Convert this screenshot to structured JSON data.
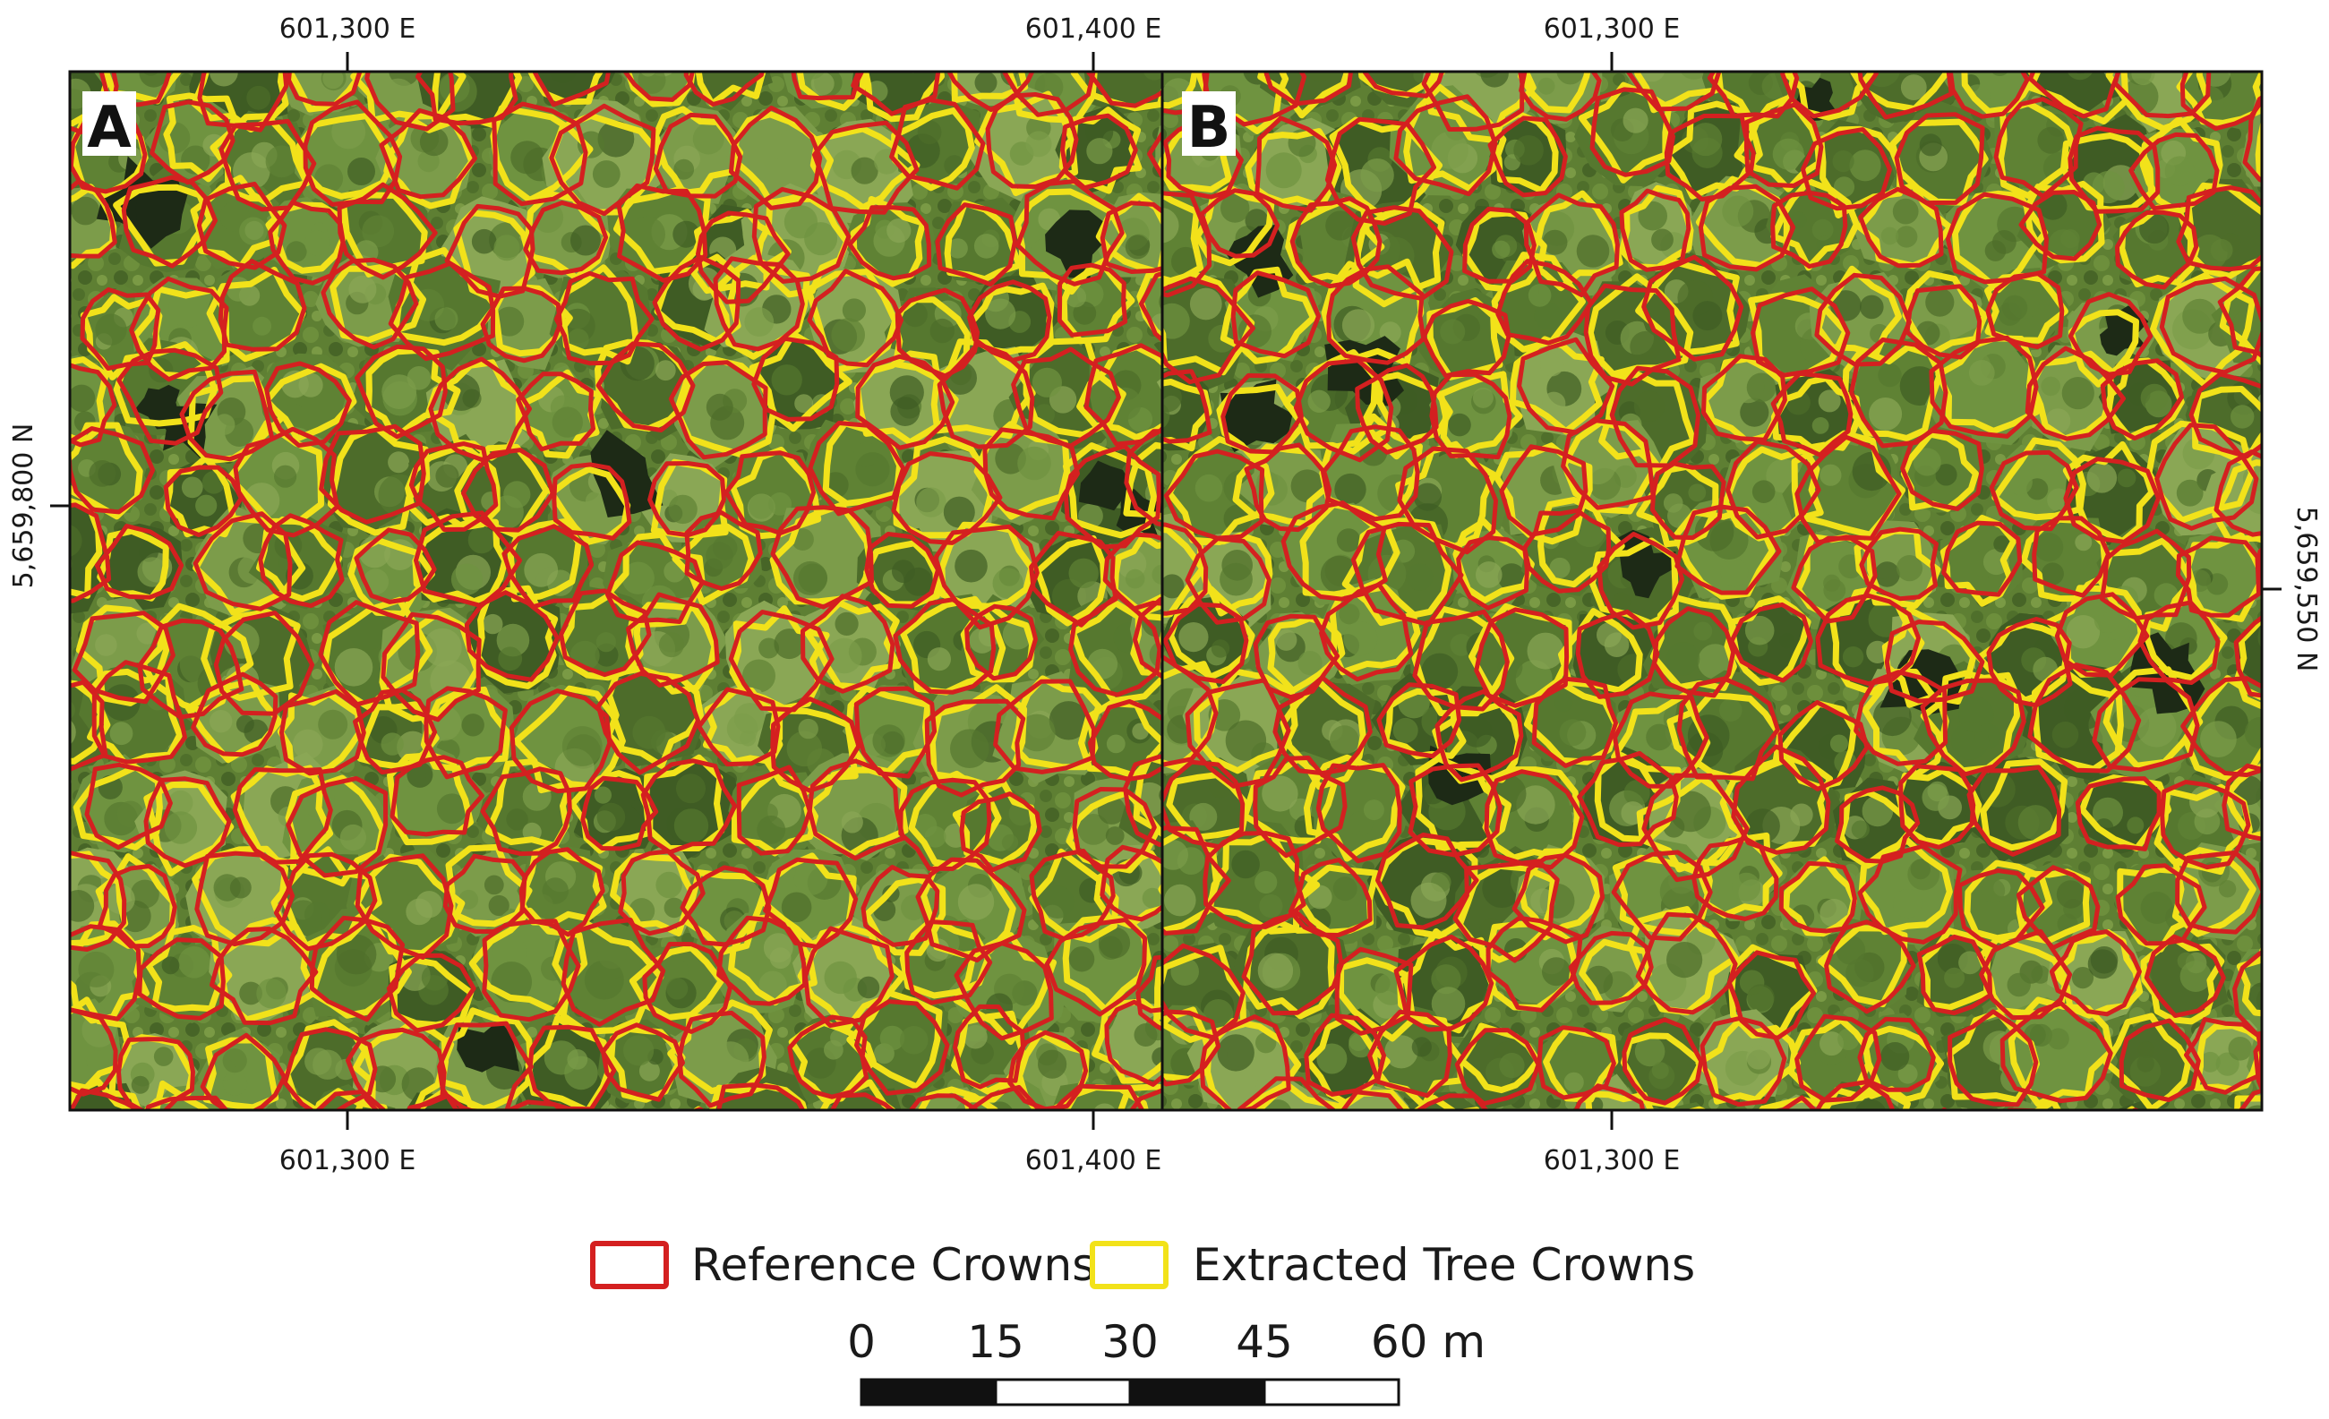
{
  "panels": [
    {
      "letter": "A",
      "top_ticks": [
        "601,300 E",
        "601,400 E"
      ],
      "bottom_ticks": [
        "601,300 E",
        "601,400 E"
      ],
      "side_tick": "5,659,800 N"
    },
    {
      "letter": "B",
      "top_ticks": [
        "601,300 E"
      ],
      "bottom_ticks": [
        "601,300 E"
      ],
      "side_tick": "5,659,550 N"
    }
  ],
  "legend": [
    {
      "label": "Reference Crowns",
      "color": "#d42020"
    },
    {
      "label": "Extracted Tree Crowns",
      "color": "#f2e21a"
    }
  ],
  "scalebar": {
    "ticks": [
      "0",
      "15",
      "30",
      "45",
      "60 m"
    ]
  },
  "colors": {
    "canopy": "#5e7f33",
    "canopy_dark": "#3f5a25",
    "gap": "#1d2a16",
    "reference": "#d42020",
    "extracted": "#f2e21a"
  }
}
